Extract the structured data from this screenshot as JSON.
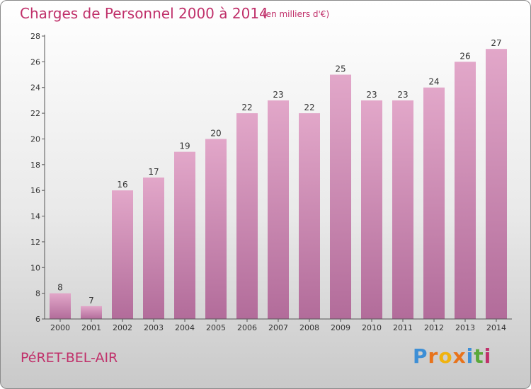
{
  "header": {
    "title": "Charges de Personnel 2000 à 2014",
    "subtitle": "(en milliers d'€)"
  },
  "footer": {
    "town": "PéRET-BEL-AIR",
    "logo": "Proxiti"
  },
  "colors": {
    "title": "#c0306a",
    "bar_light": "#e2a7c9",
    "bar_dark": "#b26c9a",
    "logo_letters": [
      "#3d8fd6",
      "#e8731b",
      "#f0b30f",
      "#e8731b",
      "#3d8fd6",
      "#5aa83a",
      "#c0306a"
    ]
  },
  "chart_data": {
    "type": "bar",
    "categories": [
      "2000",
      "2001",
      "2002",
      "2003",
      "2004",
      "2005",
      "2006",
      "2007",
      "2008",
      "2009",
      "2010",
      "2011",
      "2012",
      "2013",
      "2014"
    ],
    "values": [
      8,
      7,
      16,
      17,
      19,
      20,
      22,
      23,
      22,
      25,
      23,
      23,
      24,
      26,
      27
    ],
    "ylim": [
      6,
      28
    ],
    "yticks": [
      6,
      8,
      10,
      12,
      14,
      16,
      18,
      20,
      22,
      24,
      26,
      28
    ],
    "grid": false,
    "data_labels": true
  }
}
